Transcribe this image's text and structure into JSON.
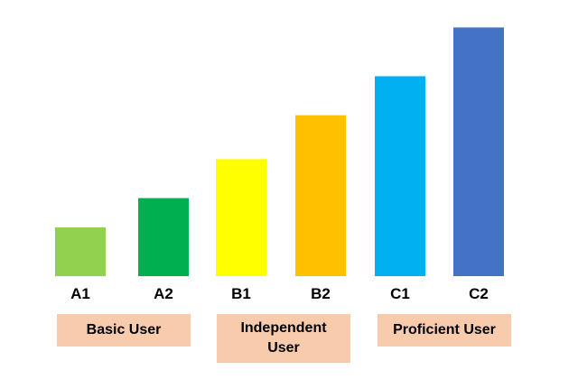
{
  "chart_data": {
    "type": "bar",
    "title": "",
    "xlabel": "",
    "ylabel": "",
    "categories": [
      "A1",
      "A2",
      "B1",
      "B2",
      "C1",
      "C2"
    ],
    "values": [
      1,
      1.6,
      2.4,
      3.3,
      4.1,
      5.1
    ],
    "ylim": [
      0,
      5.2
    ],
    "grid": false,
    "legend": "none",
    "colors": [
      "#92d050",
      "#00b050",
      "#ffff00",
      "#ffc000",
      "#00b0f0",
      "#4472c4"
    ],
    "groups": [
      {
        "label": "Basic User",
        "categories": [
          "A1",
          "A2"
        ]
      },
      {
        "label": "Independent User",
        "categories": [
          "B1",
          "B2"
        ]
      },
      {
        "label": "Proficient User",
        "categories": [
          "C1",
          "C2"
        ]
      }
    ],
    "group_color": "#f8cbad"
  }
}
